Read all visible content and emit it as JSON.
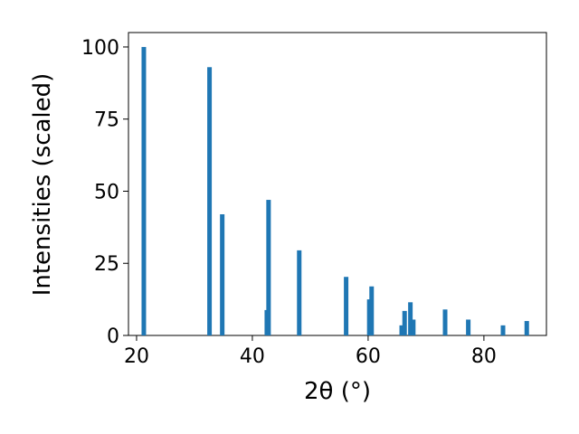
{
  "chart_data": {
    "type": "bar",
    "x_label": "2θ (°)",
    "y_label": "Intensities (scaled)",
    "x": [
      21.25,
      32.6,
      34.8,
      42.5,
      42.8,
      48.1,
      56.2,
      60.2,
      60.6,
      65.8,
      66.3,
      67.3,
      67.8,
      73.3,
      77.3,
      83.3,
      87.4
    ],
    "values": [
      100,
      93,
      42,
      8.8,
      47,
      29.5,
      20.3,
      12.5,
      17,
      3.5,
      8.5,
      11.5,
      5.5,
      9,
      5.5,
      3.5,
      5
    ],
    "color": "#1f77b4",
    "xlim": [
      18.6,
      90.8
    ],
    "xticks": [
      20,
      40,
      60,
      80
    ],
    "ylim": [
      0,
      105
    ],
    "yticks": [
      0,
      25,
      50,
      75,
      100
    ]
  }
}
